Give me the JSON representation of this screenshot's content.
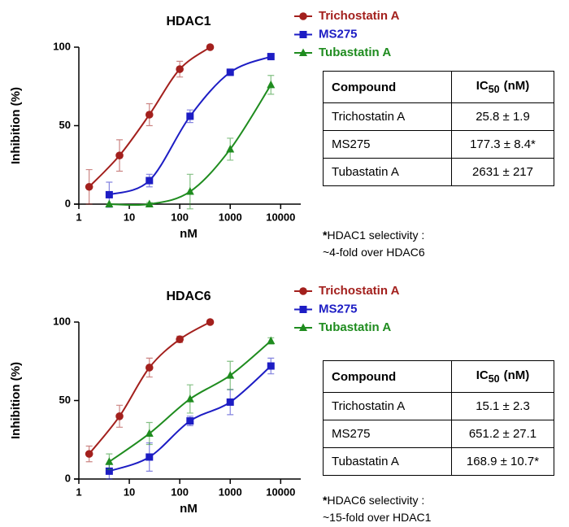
{
  "chart_data": [
    {
      "type": "scatter",
      "title": "HDAC1",
      "x_label": "nM",
      "y_label": "Inhibition (%)",
      "xscale": "log",
      "xlim": [
        1,
        25000
      ],
      "xticks": [
        1,
        10,
        100,
        1000,
        10000
      ],
      "ylim": [
        0,
        100
      ],
      "yticks": [
        0,
        50,
        100
      ],
      "series": [
        {
          "name": "Trichostatin A",
          "color": "#a3201d",
          "marker": "circle",
          "x": [
            1.6,
            6.4,
            25,
            100,
            400
          ],
          "values": [
            11,
            31,
            57,
            86,
            100
          ],
          "errors": [
            11,
            10,
            7,
            5,
            0
          ]
        },
        {
          "name": "MS275",
          "color": "#1d1dc4",
          "marker": "square",
          "x": [
            4,
            25,
            160,
            1000,
            6400
          ],
          "values": [
            6,
            15,
            56,
            84,
            94
          ],
          "errors": [
            8,
            4,
            4,
            2,
            1
          ]
        },
        {
          "name": "Tubastatin A",
          "color": "#1f8c1f",
          "marker": "triangle",
          "x": [
            4,
            25,
            160,
            1000,
            6400
          ],
          "values": [
            0,
            0,
            8,
            35,
            76
          ],
          "errors": [
            0,
            1,
            11,
            7,
            6
          ]
        }
      ]
    },
    {
      "type": "scatter",
      "title": "HDAC6",
      "x_label": "nM",
      "y_label": "Inhibition (%)",
      "xscale": "log",
      "xlim": [
        1,
        25000
      ],
      "xticks": [
        1,
        10,
        100,
        1000,
        10000
      ],
      "ylim": [
        0,
        100
      ],
      "yticks": [
        0,
        50,
        100
      ],
      "series": [
        {
          "name": "Trichostatin A",
          "color": "#a3201d",
          "marker": "circle",
          "x": [
            1.6,
            6.4,
            25,
            100,
            400
          ],
          "values": [
            16,
            40,
            71,
            89,
            100
          ],
          "errors": [
            5,
            7,
            6,
            2,
            0
          ]
        },
        {
          "name": "MS275",
          "color": "#1d1dc4",
          "marker": "square",
          "x": [
            4,
            25,
            160,
            1000,
            6400
          ],
          "values": [
            5,
            14,
            37,
            49,
            72
          ],
          "errors": [
            5,
            9,
            3,
            8,
            5
          ]
        },
        {
          "name": "Tubastatin A",
          "color": "#1f8c1f",
          "marker": "triangle",
          "x": [
            4,
            25,
            160,
            1000,
            6400
          ],
          "values": [
            11,
            29,
            51,
            66,
            88
          ],
          "errors": [
            5,
            7,
            9,
            9,
            2
          ]
        }
      ]
    }
  ],
  "tables": [
    {
      "header": {
        "compound": "Compound",
        "ic": "IC",
        "sub": "50",
        "unit": "(nM)"
      },
      "rows": [
        [
          "Trichostatin A",
          "25.8 ± 1.9"
        ],
        [
          "MS275",
          "177.3 ± 8.4*"
        ],
        [
          "Tubastatin A",
          "2631 ± 217"
        ]
      ]
    },
    {
      "header": {
        "compound": "Compound",
        "ic": "IC",
        "sub": "50",
        "unit": "(nM)"
      },
      "rows": [
        [
          "Trichostatin A",
          "15.1 ± 2.3"
        ],
        [
          "MS275",
          "651.2 ± 27.1"
        ],
        [
          "Tubastatin A",
          "168.9 ± 10.7*"
        ]
      ]
    }
  ],
  "notes": [
    {
      "mark": "*",
      "line1": "HDAC1 selectivity :",
      "line2": "~4-fold over HDAC6"
    },
    {
      "mark": "*",
      "line1": "HDAC6 selectivity :",
      "line2": "~15-fold over HDAC1"
    }
  ]
}
